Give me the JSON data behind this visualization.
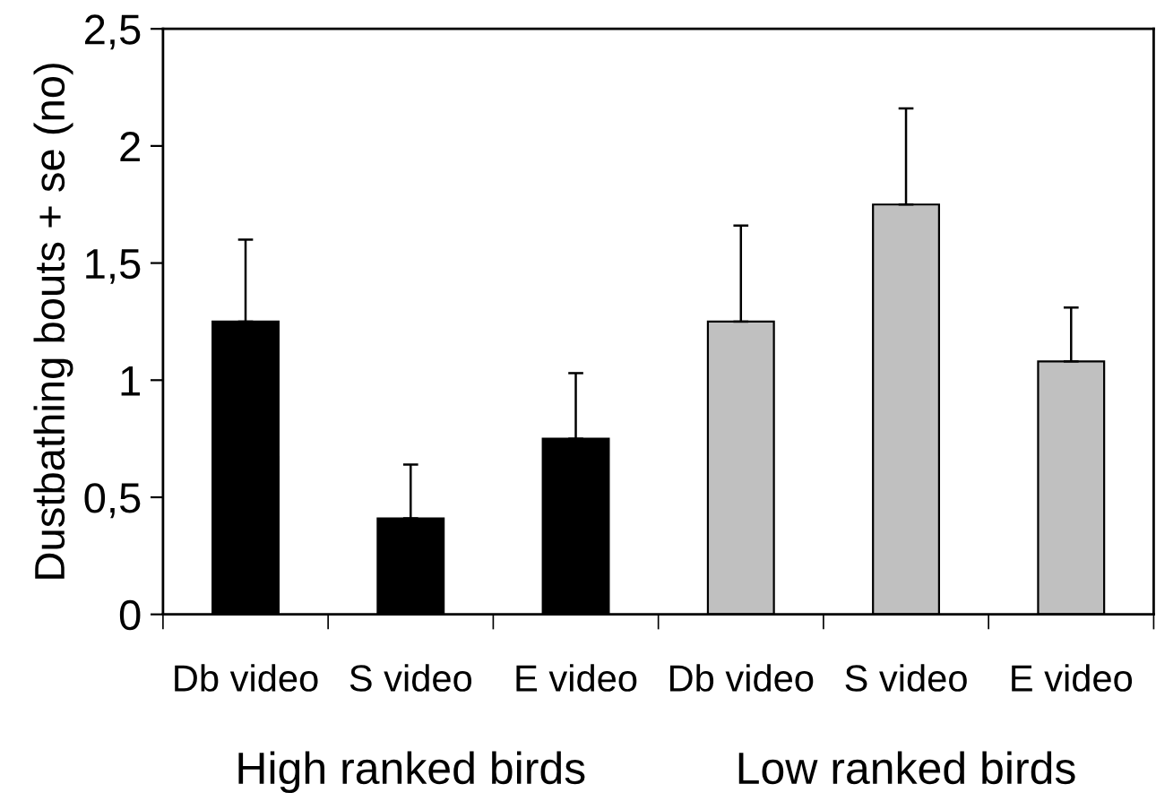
{
  "chart_data": {
    "type": "bar",
    "ylabel": "Dustbathing bouts + se (no)",
    "categories": [
      "Db video",
      "S video",
      "E video",
      "Db video",
      "S video",
      "E video"
    ],
    "values": [
      1.25,
      0.41,
      0.75,
      1.25,
      1.75,
      1.08
    ],
    "colors": [
      "#000000",
      "#000000",
      "#000000",
      "#c0c0c0",
      "#c0c0c0",
      "#c0c0c0"
    ],
    "errors": [
      [
        1.25,
        1.6
      ],
      [
        0.41,
        0.64
      ],
      [
        0.75,
        1.03
      ],
      [
        1.25,
        1.66
      ],
      [
        1.75,
        2.16
      ],
      [
        1.08,
        1.31
      ]
    ],
    "ylim": [
      0,
      2.5
    ],
    "yticks": [
      0,
      {
        "value": 0.5,
        "label": "0,5"
      },
      1,
      {
        "value": 1.5,
        "label": "1,5"
      },
      2,
      {
        "value": 2.5,
        "label": "2,5"
      }
    ],
    "annotations": [
      "High ranked birds",
      "Low ranked birds"
    ],
    "grid": false,
    "legend": false
  }
}
